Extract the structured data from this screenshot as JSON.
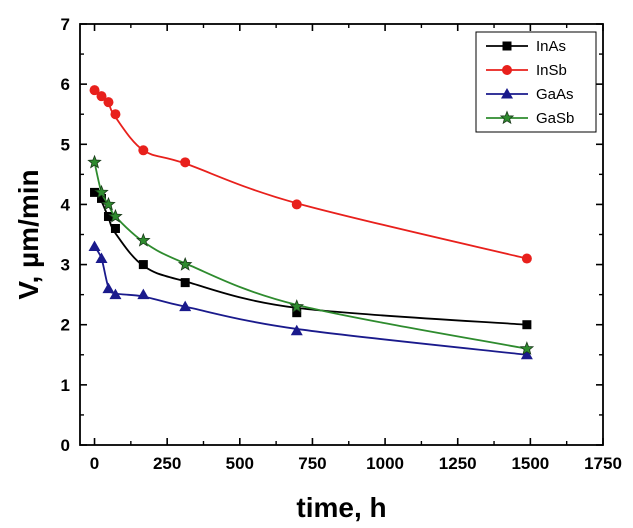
{
  "chart_data": {
    "type": "line",
    "xlabel": "time, h",
    "ylabel": "V, µm/min",
    "xlim": [
      -50,
      1750
    ],
    "ylim": [
      0,
      7
    ],
    "xticks": [
      0,
      250,
      500,
      750,
      1000,
      1250,
      1500,
      1750
    ],
    "yticks": [
      0,
      1,
      2,
      3,
      4,
      5,
      6,
      7
    ],
    "grid": false,
    "legend_position": "top-right",
    "series": [
      {
        "name": "InAs",
        "color": "#000000",
        "marker": "square",
        "x": [
          0,
          24,
          48,
          72,
          168,
          312,
          696,
          1488
        ],
        "y": [
          4.2,
          4.1,
          3.8,
          3.6,
          3.0,
          2.7,
          2.2,
          2.0
        ],
        "curve_x": [
          0,
          24,
          48,
          72,
          168,
          312,
          696,
          1488
        ],
        "curve_y": [
          4.22,
          4.05,
          3.78,
          3.52,
          2.98,
          2.72,
          2.28,
          2.0
        ]
      },
      {
        "name": "InSb",
        "color": "#e8201c",
        "marker": "circle",
        "x": [
          0,
          24,
          48,
          72,
          168,
          312,
          696,
          1488
        ],
        "y": [
          5.9,
          5.8,
          5.7,
          5.5,
          4.9,
          4.7,
          4.0,
          3.1
        ],
        "curve_x": [
          0,
          24,
          48,
          72,
          168,
          312,
          696,
          1488
        ],
        "curve_y": [
          5.9,
          5.82,
          5.68,
          5.45,
          4.9,
          4.68,
          4.02,
          3.1
        ]
      },
      {
        "name": "GaAs",
        "color": "#1a1a8c",
        "marker": "triangle",
        "x": [
          0,
          24,
          48,
          72,
          168,
          312,
          696,
          1488
        ],
        "y": [
          3.3,
          3.1,
          2.6,
          2.5,
          2.5,
          2.3,
          1.9,
          1.5
        ],
        "curve_x": [
          0,
          24,
          48,
          72,
          168,
          312,
          696,
          1488
        ],
        "curve_y": [
          3.3,
          3.1,
          2.62,
          2.52,
          2.47,
          2.3,
          1.93,
          1.5
        ]
      },
      {
        "name": "GaSb",
        "color": "#2e8b2e",
        "marker": "star",
        "x": [
          0,
          24,
          48,
          72,
          168,
          312,
          696,
          1488
        ],
        "y": [
          4.7,
          4.2,
          4.0,
          3.8,
          3.4,
          3.0,
          2.3,
          1.6
        ],
        "curve_x": [
          0,
          24,
          48,
          72,
          168,
          312,
          696,
          1488
        ],
        "curve_y": [
          4.7,
          4.2,
          4.0,
          3.8,
          3.38,
          3.02,
          2.33,
          1.6
        ]
      }
    ]
  }
}
